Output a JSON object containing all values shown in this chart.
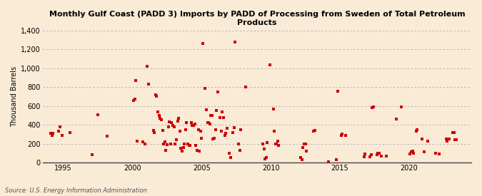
{
  "title": "Monthly Gulf Coast (PADD 3) Imports by PADD of Processing from Sweden of Total Petroleum\nProducts",
  "ylabel": "Thousand Barrels",
  "source": "Source: U.S. Energy Information Administration",
  "background_color": "#faebd7",
  "plot_bg_color": "#faebd7",
  "marker_color": "#cc0000",
  "marker_size": 5,
  "ylim": [
    0,
    1400
  ],
  "yticks": [
    0,
    200,
    400,
    600,
    800,
    1000,
    1200,
    1400
  ],
  "xlim": [
    1993.5,
    2024.5
  ],
  "xticks": [
    1995,
    2000,
    2005,
    2010,
    2015,
    2020
  ],
  "data": [
    [
      1994.08,
      310
    ],
    [
      1994.17,
      290
    ],
    [
      1994.25,
      310
    ],
    [
      1994.67,
      330
    ],
    [
      1994.75,
      380
    ],
    [
      1994.92,
      290
    ],
    [
      1995.5,
      320
    ],
    [
      1997.08,
      80
    ],
    [
      1997.5,
      510
    ],
    [
      1998.17,
      280
    ],
    [
      2000.08,
      660
    ],
    [
      2000.17,
      670
    ],
    [
      2000.25,
      870
    ],
    [
      2000.33,
      230
    ],
    [
      2000.75,
      220
    ],
    [
      2000.92,
      200
    ],
    [
      2001.08,
      1020
    ],
    [
      2001.17,
      830
    ],
    [
      2001.5,
      340
    ],
    [
      2001.58,
      320
    ],
    [
      2001.67,
      720
    ],
    [
      2001.75,
      700
    ],
    [
      2001.83,
      540
    ],
    [
      2001.92,
      500
    ],
    [
      2002.0,
      470
    ],
    [
      2002.08,
      450
    ],
    [
      2002.17,
      340
    ],
    [
      2002.25,
      200
    ],
    [
      2002.33,
      220
    ],
    [
      2002.42,
      130
    ],
    [
      2002.5,
      190
    ],
    [
      2002.58,
      380
    ],
    [
      2002.67,
      430
    ],
    [
      2002.75,
      200
    ],
    [
      2002.83,
      420
    ],
    [
      2002.92,
      390
    ],
    [
      2003.0,
      380
    ],
    [
      2003.08,
      200
    ],
    [
      2003.17,
      240
    ],
    [
      2003.25,
      440
    ],
    [
      2003.33,
      470
    ],
    [
      2003.42,
      330
    ],
    [
      2003.5,
      150
    ],
    [
      2003.58,
      120
    ],
    [
      2003.67,
      160
    ],
    [
      2003.75,
      200
    ],
    [
      2003.83,
      350
    ],
    [
      2003.92,
      420
    ],
    [
      2004.0,
      200
    ],
    [
      2004.08,
      180
    ],
    [
      2004.17,
      180
    ],
    [
      2004.25,
      420
    ],
    [
      2004.33,
      390
    ],
    [
      2004.42,
      390
    ],
    [
      2004.5,
      410
    ],
    [
      2004.58,
      180
    ],
    [
      2004.67,
      130
    ],
    [
      2004.75,
      350
    ],
    [
      2004.83,
      120
    ],
    [
      2004.92,
      330
    ],
    [
      2005.0,
      260
    ],
    [
      2005.08,
      1260
    ],
    [
      2005.25,
      790
    ],
    [
      2005.33,
      560
    ],
    [
      2005.42,
      420
    ],
    [
      2005.5,
      420
    ],
    [
      2005.58,
      410
    ],
    [
      2005.67,
      500
    ],
    [
      2005.75,
      500
    ],
    [
      2005.83,
      250
    ],
    [
      2005.92,
      260
    ],
    [
      2006.0,
      350
    ],
    [
      2006.08,
      550
    ],
    [
      2006.17,
      750
    ],
    [
      2006.33,
      480
    ],
    [
      2006.42,
      330
    ],
    [
      2006.5,
      540
    ],
    [
      2006.58,
      480
    ],
    [
      2006.67,
      290
    ],
    [
      2006.75,
      310
    ],
    [
      2006.83,
      360
    ],
    [
      2007.0,
      100
    ],
    [
      2007.08,
      50
    ],
    [
      2007.25,
      320
    ],
    [
      2007.33,
      370
    ],
    [
      2007.42,
      1280
    ],
    [
      2007.67,
      200
    ],
    [
      2007.75,
      130
    ],
    [
      2007.83,
      350
    ],
    [
      2008.17,
      800
    ],
    [
      2009.42,
      200
    ],
    [
      2009.5,
      140
    ],
    [
      2009.58,
      40
    ],
    [
      2009.67,
      50
    ],
    [
      2009.75,
      210
    ],
    [
      2009.92,
      1040
    ],
    [
      2010.17,
      570
    ],
    [
      2010.25,
      330
    ],
    [
      2010.33,
      200
    ],
    [
      2010.42,
      200
    ],
    [
      2010.5,
      230
    ],
    [
      2010.58,
      180
    ],
    [
      2012.17,
      50
    ],
    [
      2012.25,
      30
    ],
    [
      2012.33,
      160
    ],
    [
      2012.42,
      200
    ],
    [
      2012.5,
      200
    ],
    [
      2012.58,
      120
    ],
    [
      2013.08,
      330
    ],
    [
      2013.17,
      340
    ],
    [
      2014.17,
      10
    ],
    [
      2014.75,
      30
    ],
    [
      2014.83,
      760
    ],
    [
      2015.08,
      290
    ],
    [
      2015.17,
      300
    ],
    [
      2015.42,
      290
    ],
    [
      2016.75,
      60
    ],
    [
      2016.83,
      90
    ],
    [
      2017.17,
      60
    ],
    [
      2017.25,
      80
    ],
    [
      2017.33,
      580
    ],
    [
      2017.42,
      590
    ],
    [
      2017.67,
      80
    ],
    [
      2017.75,
      100
    ],
    [
      2017.83,
      100
    ],
    [
      2018.0,
      70
    ],
    [
      2018.33,
      70
    ],
    [
      2019.08,
      460
    ],
    [
      2019.42,
      590
    ],
    [
      2020.08,
      90
    ],
    [
      2020.17,
      110
    ],
    [
      2020.25,
      120
    ],
    [
      2020.33,
      100
    ],
    [
      2020.5,
      330
    ],
    [
      2020.58,
      350
    ],
    [
      2020.92,
      250
    ],
    [
      2021.08,
      110
    ],
    [
      2021.33,
      230
    ],
    [
      2021.92,
      100
    ],
    [
      2022.17,
      90
    ],
    [
      2022.67,
      250
    ],
    [
      2022.75,
      230
    ],
    [
      2022.92,
      250
    ],
    [
      2023.17,
      320
    ],
    [
      2023.25,
      320
    ],
    [
      2023.33,
      240
    ],
    [
      2023.42,
      240
    ]
  ]
}
